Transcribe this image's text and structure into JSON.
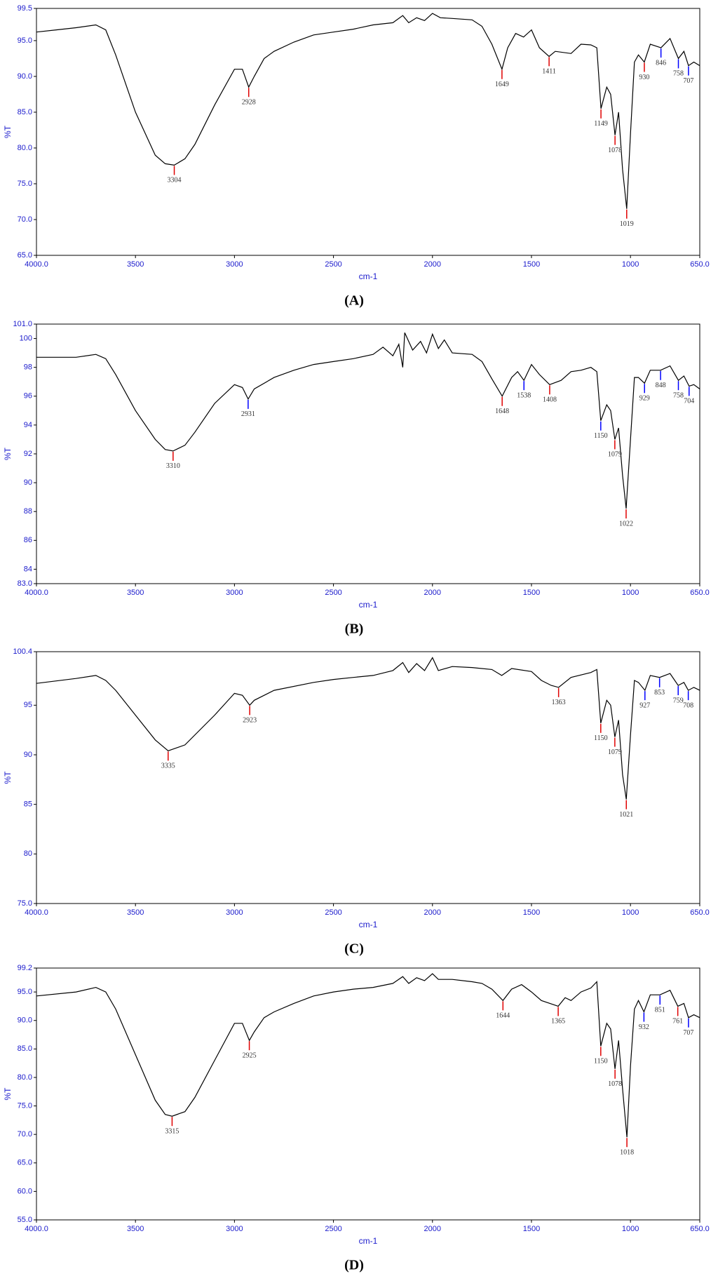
{
  "chart_data": [
    {
      "type": "line",
      "panel_label": "(A)",
      "x_label": "cm-1",
      "y_label": "%T",
      "color": "#000000",
      "xlim": [
        4000,
        650
      ],
      "ylim": [
        65,
        99.5
      ],
      "xticks": [
        {
          "value": 4000,
          "label": "4000.0"
        },
        3500,
        3000,
        2500,
        2000,
        1500,
        1000,
        {
          "value": 650,
          "label": "650.0"
        }
      ],
      "yticks": [
        {
          "value": 99.5,
          "label": "99.5"
        },
        {
          "value": 95,
          "label": "95.0"
        },
        {
          "value": 90,
          "label": "90.0"
        },
        {
          "value": 85,
          "label": "85.0"
        },
        {
          "value": 80,
          "label": "80.0"
        },
        {
          "value": 75,
          "label": "75.0"
        },
        {
          "value": 70,
          "label": "70.0"
        },
        {
          "value": 65,
          "label": "65.0"
        }
      ],
      "x": [
        4000,
        3900,
        3800,
        3700,
        3650,
        3600,
        3500,
        3400,
        3350,
        3304,
        3250,
        3200,
        3100,
        3000,
        2960,
        2928,
        2900,
        2850,
        2800,
        2700,
        2600,
        2500,
        2400,
        2300,
        2200,
        2150,
        2120,
        2080,
        2040,
        2000,
        1960,
        1900,
        1800,
        1750,
        1700,
        1649,
        1620,
        1580,
        1540,
        1500,
        1460,
        1411,
        1380,
        1300,
        1250,
        1200,
        1170,
        1149,
        1120,
        1100,
        1078,
        1060,
        1040,
        1019,
        1000,
        980,
        960,
        930,
        900,
        846,
        800,
        758,
        730,
        707,
        680,
        650
      ],
      "values": [
        96.2,
        96.5,
        96.8,
        97.2,
        96.5,
        93,
        85,
        79,
        77.8,
        77.6,
        78.5,
        80.5,
        86,
        91,
        91,
        88.5,
        90,
        92.5,
        93.5,
        94.8,
        95.8,
        96.2,
        96.6,
        97.2,
        97.5,
        98.5,
        97.5,
        98.2,
        97.8,
        98.8,
        98.2,
        98.1,
        97.9,
        97,
        94.5,
        91,
        94,
        96,
        95.5,
        96.5,
        94,
        92.8,
        93.5,
        93.2,
        94.5,
        94.4,
        94,
        85.5,
        88.5,
        87.5,
        81.8,
        85,
        77,
        71.5,
        82,
        92,
        93,
        92,
        94.5,
        94,
        95.3,
        92.5,
        93.5,
        91.5,
        92,
        91.5
      ],
      "peaks": [
        {
          "x": 3304,
          "color": "#e00000"
        },
        {
          "x": 2928,
          "color": "#e00000"
        },
        {
          "x": 1649,
          "color": "#e00000"
        },
        {
          "x": 1411,
          "color": "#e00000"
        },
        {
          "x": 1149,
          "color": "#e00000"
        },
        {
          "x": 1078,
          "color": "#e00000"
        },
        {
          "x": 1019,
          "color": "#e00000"
        },
        {
          "x": 930,
          "color": "#e00000"
        },
        {
          "x": 846,
          "color": "#0000ff"
        },
        {
          "x": 758,
          "color": "#0000ff"
        },
        {
          "x": 707,
          "color": "#0000ff"
        }
      ]
    },
    {
      "type": "line",
      "panel_label": "(B)",
      "x_label": "cm-1",
      "y_label": "%T",
      "color": "#000000",
      "xlim": [
        4000,
        650
      ],
      "ylim": [
        83,
        101
      ],
      "xticks": [
        {
          "value": 4000,
          "label": "4000.0"
        },
        3500,
        3000,
        2500,
        2000,
        1500,
        1000,
        {
          "value": 650,
          "label": "650.0"
        }
      ],
      "yticks": [
        {
          "value": 101,
          "label": "101.0"
        },
        100,
        98,
        96,
        94,
        92,
        90,
        88,
        86,
        84,
        {
          "value": 83,
          "label": "83.0"
        }
      ],
      "x": [
        4000,
        3800,
        3700,
        3650,
        3600,
        3500,
        3400,
        3350,
        3310,
        3250,
        3200,
        3100,
        3000,
        2960,
        2931,
        2900,
        2800,
        2700,
        2600,
        2500,
        2400,
        2300,
        2250,
        2200,
        2170,
        2150,
        2140,
        2100,
        2060,
        2030,
        2000,
        1970,
        1940,
        1900,
        1800,
        1750,
        1700,
        1648,
        1600,
        1570,
        1538,
        1500,
        1460,
        1408,
        1350,
        1300,
        1250,
        1200,
        1170,
        1150,
        1120,
        1100,
        1079,
        1060,
        1040,
        1022,
        1000,
        980,
        960,
        929,
        900,
        848,
        800,
        758,
        730,
        704,
        680,
        650
      ],
      "values": [
        98.7,
        98.7,
        98.9,
        98.6,
        97.5,
        95,
        93,
        92.3,
        92.2,
        92.6,
        93.5,
        95.5,
        96.8,
        96.6,
        95.8,
        96.5,
        97.3,
        97.8,
        98.2,
        98.4,
        98.6,
        98.9,
        99.4,
        98.8,
        99.6,
        98,
        100.4,
        99.2,
        99.8,
        99,
        100.3,
        99.3,
        99.9,
        99,
        98.9,
        98.4,
        97.2,
        96,
        97.3,
        97.7,
        97.1,
        98.2,
        97.5,
        96.8,
        97.1,
        97.7,
        97.8,
        98,
        97.7,
        94.3,
        95.4,
        95,
        93,
        93.8,
        90.5,
        88.2,
        93,
        97.3,
        97.3,
        96.9,
        97.8,
        97.8,
        98.1,
        97.1,
        97.4,
        96.7,
        96.8,
        96.5
      ],
      "peaks": [
        {
          "x": 3310,
          "color": "#e00000"
        },
        {
          "x": 2931,
          "color": "#0000ff"
        },
        {
          "x": 1648,
          "color": "#e00000"
        },
        {
          "x": 1538,
          "color": "#0000ff"
        },
        {
          "x": 1408,
          "color": "#e00000"
        },
        {
          "x": 1150,
          "color": "#0000ff"
        },
        {
          "x": 1079,
          "color": "#e00000"
        },
        {
          "x": 1022,
          "color": "#e00000"
        },
        {
          "x": 929,
          "color": "#0000ff"
        },
        {
          "x": 848,
          "color": "#0000ff"
        },
        {
          "x": 758,
          "color": "#0000ff"
        },
        {
          "x": 704,
          "color": "#0000ff"
        }
      ]
    },
    {
      "type": "line",
      "panel_label": "(C)",
      "x_label": "cm-1",
      "y_label": "%T",
      "color": "#000000",
      "xlim": [
        4000,
        650
      ],
      "ylim": [
        75,
        100.4
      ],
      "xticks": [
        {
          "value": 4000,
          "label": "4000.0"
        },
        3500,
        3000,
        2500,
        2000,
        1500,
        1000,
        {
          "value": 650,
          "label": "650.0"
        }
      ],
      "yticks": [
        100.4,
        95,
        90,
        85,
        80,
        {
          "value": 75,
          "label": "75.0"
        }
      ],
      "x": [
        4000,
        3800,
        3700,
        3650,
        3600,
        3500,
        3400,
        3335,
        3250,
        3100,
        3000,
        2960,
        2923,
        2900,
        2800,
        2600,
        2500,
        2400,
        2300,
        2200,
        2150,
        2120,
        2080,
        2040,
        2000,
        1970,
        1900,
        1800,
        1700,
        1650,
        1600,
        1500,
        1450,
        1400,
        1363,
        1300,
        1200,
        1170,
        1150,
        1120,
        1100,
        1079,
        1060,
        1040,
        1021,
        1000,
        980,
        960,
        927,
        900,
        853,
        800,
        759,
        730,
        708,
        680,
        650
      ],
      "values": [
        97.2,
        97.7,
        98,
        97.5,
        96.5,
        94,
        91.5,
        90.4,
        91,
        94,
        96.2,
        96,
        95,
        95.5,
        96.5,
        97.3,
        97.6,
        97.8,
        98,
        98.5,
        99.3,
        98.3,
        99.2,
        98.5,
        99.8,
        98.5,
        98.9,
        98.8,
        98.6,
        98,
        98.7,
        98.4,
        97.5,
        97,
        96.8,
        97.8,
        98.3,
        98.6,
        93.2,
        95.5,
        95,
        91.8,
        93.5,
        88,
        85.5,
        92,
        97.5,
        97.3,
        96.5,
        98,
        97.8,
        98.2,
        97,
        97.3,
        96.5,
        96.8,
        96.5
      ],
      "peaks": [
        {
          "x": 3335,
          "color": "#e00000"
        },
        {
          "x": 2923,
          "color": "#e00000"
        },
        {
          "x": 1363,
          "color": "#e00000"
        },
        {
          "x": 1150,
          "color": "#e00000"
        },
        {
          "x": 1079,
          "color": "#e00000"
        },
        {
          "x": 1021,
          "color": "#e00000"
        },
        {
          "x": 927,
          "color": "#0000ff"
        },
        {
          "x": 853,
          "color": "#0000ff"
        },
        {
          "x": 759,
          "color": "#0000ff"
        },
        {
          "x": 708,
          "color": "#0000ff"
        }
      ]
    },
    {
      "type": "line",
      "panel_label": "(D)",
      "x_label": "cm-1",
      "y_label": "%T",
      "color": "#000000",
      "xlim": [
        4000,
        650
      ],
      "ylim": [
        55,
        99.2
      ],
      "xticks": [
        {
          "value": 4000,
          "label": "4000.0"
        },
        3500,
        3000,
        2500,
        2000,
        1500,
        1000,
        {
          "value": 650,
          "label": "650.0"
        }
      ],
      "yticks": [
        99.2,
        {
          "value": 95,
          "label": "95.0"
        },
        {
          "value": 90,
          "label": "90.0"
        },
        {
          "value": 85,
          "label": "85.0"
        },
        {
          "value": 80,
          "label": "80.0"
        },
        {
          "value": 75,
          "label": "75.0"
        },
        {
          "value": 70,
          "label": "70.0"
        },
        {
          "value": 65,
          "label": "65.0"
        },
        {
          "value": 60,
          "label": "60.0"
        },
        {
          "value": 55,
          "label": "55.0"
        }
      ],
      "x": [
        4000,
        3800,
        3700,
        3650,
        3600,
        3500,
        3400,
        3350,
        3315,
        3250,
        3200,
        3100,
        3000,
        2960,
        2925,
        2900,
        2850,
        2800,
        2700,
        2600,
        2500,
        2400,
        2300,
        2200,
        2150,
        2120,
        2080,
        2040,
        2000,
        1970,
        1900,
        1800,
        1750,
        1700,
        1644,
        1600,
        1550,
        1500,
        1450,
        1365,
        1330,
        1300,
        1250,
        1200,
        1170,
        1150,
        1120,
        1100,
        1078,
        1060,
        1040,
        1018,
        1000,
        980,
        960,
        932,
        900,
        851,
        800,
        761,
        730,
        707,
        680,
        650
      ],
      "values": [
        94.3,
        95,
        95.8,
        95,
        92,
        84,
        76,
        73.5,
        73.2,
        74,
        76.5,
        83,
        89.5,
        89.5,
        86.5,
        88,
        90.5,
        91.5,
        93,
        94.3,
        95,
        95.5,
        95.8,
        96.5,
        97.7,
        96.5,
        97.5,
        97,
        98.2,
        97.2,
        97.2,
        96.8,
        96.5,
        95.5,
        93.5,
        95.5,
        96.3,
        95,
        93.5,
        92.5,
        94,
        93.5,
        95,
        95.7,
        96.8,
        85.5,
        89.5,
        88.5,
        81.5,
        86.5,
        78,
        69.5,
        82,
        92,
        93.5,
        91.5,
        94.5,
        94.5,
        95.3,
        92.5,
        93,
        90.5,
        91,
        90.5
      ],
      "peaks": [
        {
          "x": 3315,
          "color": "#e00000"
        },
        {
          "x": 2925,
          "color": "#e00000"
        },
        {
          "x": 1644,
          "color": "#e00000"
        },
        {
          "x": 1365,
          "color": "#e00000"
        },
        {
          "x": 1150,
          "color": "#e00000"
        },
        {
          "x": 1078,
          "color": "#e00000"
        },
        {
          "x": 1018,
          "color": "#e00000"
        },
        {
          "x": 932,
          "color": "#0000ff"
        },
        {
          "x": 851,
          "color": "#0000ff"
        },
        {
          "x": 761,
          "color": "#e00000"
        },
        {
          "x": 707,
          "color": "#0000ff"
        }
      ]
    }
  ]
}
